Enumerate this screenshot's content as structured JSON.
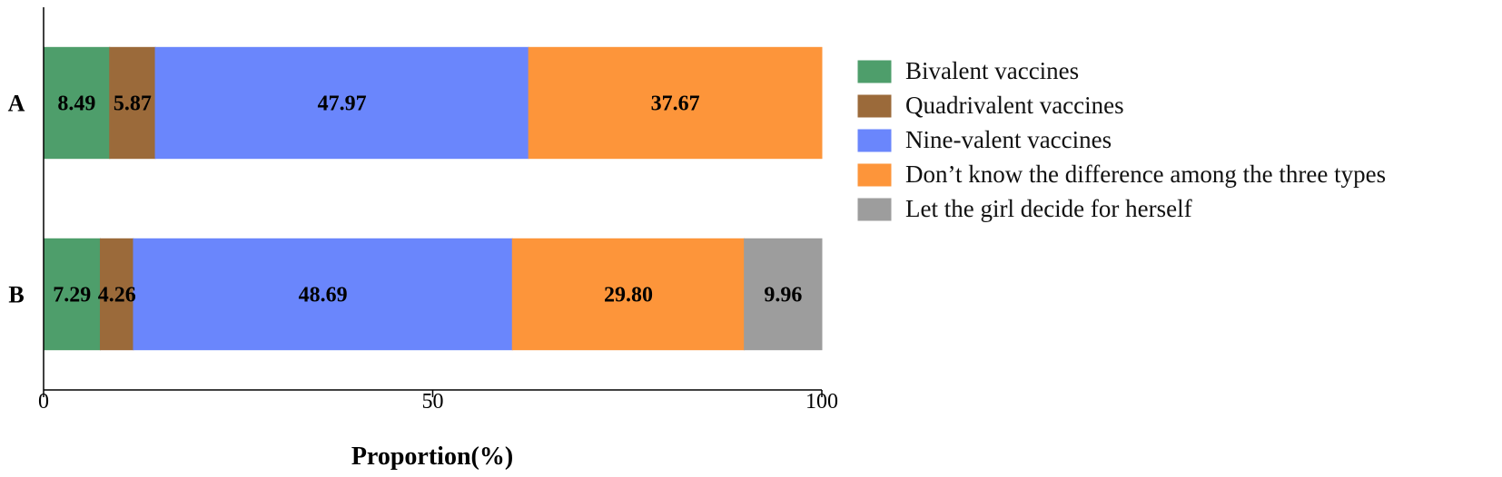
{
  "chart_data": {
    "type": "bar",
    "orientation": "horizontal",
    "stacked": true,
    "categories": [
      "A",
      "B"
    ],
    "xlabel": "Proportion(%)",
    "xlim": [
      0,
      100
    ],
    "xticks": [
      "0",
      "50",
      "100"
    ],
    "legend_position": "right",
    "grid": false,
    "series": [
      {
        "name": "Bivalent vaccines",
        "color": "#4e9e6b",
        "values": [
          8.49,
          7.29
        ],
        "labels": [
          "8.49",
          "7.29"
        ]
      },
      {
        "name": "Quadrivalent vaccines",
        "color": "#9b6a3a",
        "values": [
          5.87,
          4.26
        ],
        "labels": [
          "5.87",
          "4.26"
        ]
      },
      {
        "name": "Nine-valent vaccines",
        "color": "#6a86fc",
        "values": [
          47.97,
          48.69
        ],
        "labels": [
          "47.97",
          "48.69"
        ]
      },
      {
        "name": "Don’t know the difference among the three types",
        "color": "#fd953a",
        "values": [
          37.67,
          29.8
        ],
        "labels": [
          "37.67",
          "29.80"
        ]
      },
      {
        "name": "Let the girl decide for herself",
        "color": "#9d9d9d",
        "values": [
          0,
          9.96
        ],
        "labels": [
          "",
          "9.96"
        ]
      }
    ]
  }
}
